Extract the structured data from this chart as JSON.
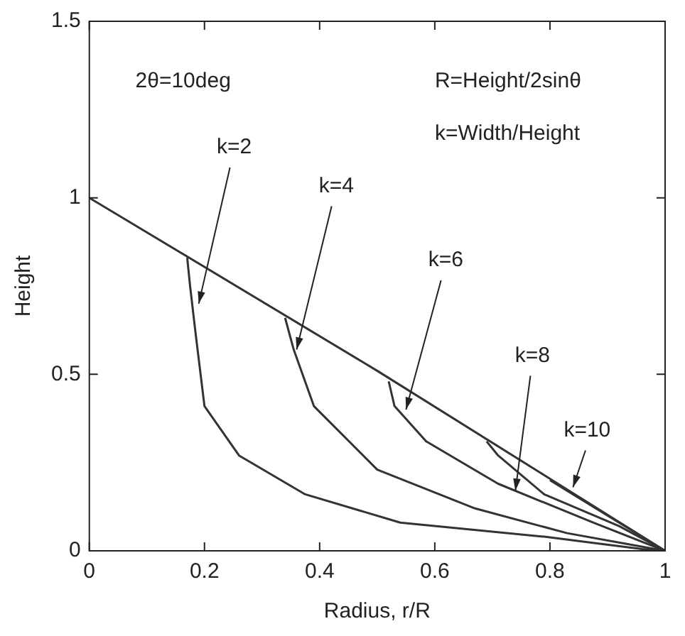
{
  "chart_data": {
    "type": "line",
    "xlabel": "Radius, r/R",
    "ylabel": "Height",
    "xlim": [
      0,
      1
    ],
    "ylim": [
      0,
      1.5
    ],
    "xticks": [
      0,
      0.2,
      0.4,
      0.6,
      0.8,
      1
    ],
    "yticks": [
      0,
      0.5,
      1,
      1.5
    ],
    "grid": false,
    "series": [
      {
        "color": "#333333",
        "x": [
          0,
          0.5,
          1
        ],
        "values": [
          1,
          0.51,
          0
        ]
      },
      {
        "color": "#333333",
        "x": [
          0.17,
          0.175,
          0.185,
          0.2,
          0.26,
          0.375,
          0.54,
          0.79,
          0.96,
          1
        ],
        "values": [
          0.83,
          0.75,
          0.61,
          0.41,
          0.27,
          0.16,
          0.08,
          0.04,
          0.005,
          0
        ]
      },
      {
        "color": "#333333",
        "x": [
          0.34,
          0.355,
          0.39,
          0.5,
          0.67,
          0.83,
          1
        ],
        "values": [
          0.66,
          0.57,
          0.41,
          0.23,
          0.12,
          0.05,
          0
        ]
      },
      {
        "color": "#333333",
        "x": [
          0.52,
          0.53,
          0.585,
          0.71,
          0.875,
          1
        ],
        "values": [
          0.48,
          0.41,
          0.31,
          0.19,
          0.08,
          0
        ]
      },
      {
        "color": "#333333",
        "x": [
          0.69,
          0.71,
          0.79,
          0.92,
          1
        ],
        "values": [
          0.31,
          0.27,
          0.16,
          0.07,
          0
        ]
      },
      {
        "color": "#333333",
        "x": [
          0.8,
          0.84,
          0.92,
          1
        ],
        "values": [
          0.2,
          0.16,
          0.08,
          0
        ]
      }
    ],
    "annotations": [
      "2θ=10deg",
      "R=Height/2sinθ",
      "k=Width/Height",
      {
        "text": "k=2",
        "x": 0.19,
        "y": 0.7
      },
      {
        "text": "k=4",
        "x": 0.36,
        "y": 0.57
      },
      {
        "text": "k=6",
        "x": 0.55,
        "y": 0.4
      },
      {
        "text": "k=8",
        "x": 0.74,
        "y": 0.17
      },
      {
        "text": "k=10",
        "x": 0.84,
        "y": 0.18
      }
    ]
  }
}
